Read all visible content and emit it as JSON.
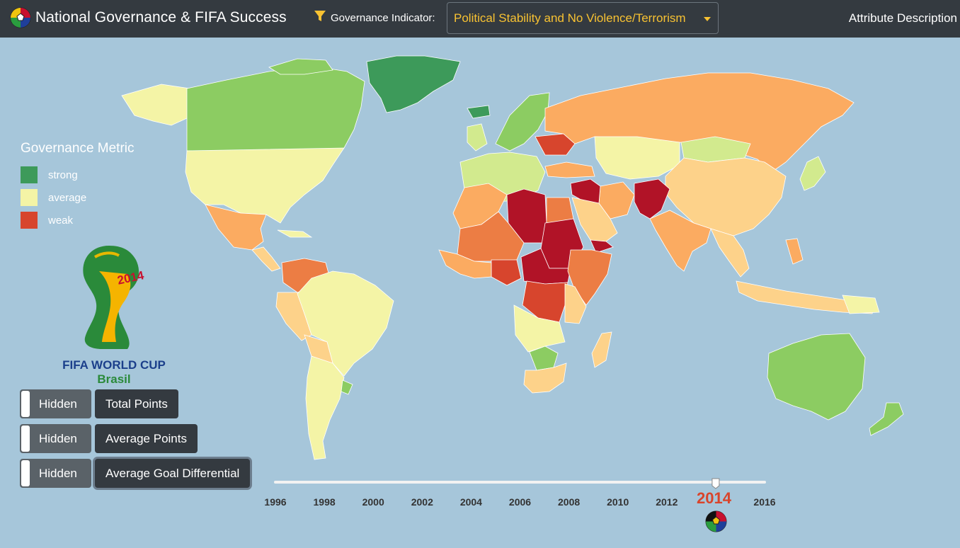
{
  "app": {
    "title": "National Governance & FIFA Success",
    "logo_icon": "soccer-ball-flags-icon"
  },
  "header": {
    "filter_icon": "filter-funnel-icon",
    "indicator_label": "Governance Indicator:",
    "indicator_selected": "Political Stability and No Violence/Terrorism",
    "attribute_description": "Attribute Description"
  },
  "legend": {
    "title": "Governance Metric",
    "items": [
      {
        "label": "strong",
        "color": "#3d9a5a"
      },
      {
        "label": "average",
        "color": "#f4f4a6"
      },
      {
        "label": "weak",
        "color": "#d7452d"
      }
    ]
  },
  "logo": {
    "line1": "FIFA WORLD CUP",
    "line2": "Brasil",
    "year": "2014"
  },
  "toggles": [
    {
      "state": "Hidden",
      "metric": "Total Points",
      "active": false
    },
    {
      "state": "Hidden",
      "metric": "Average Points",
      "active": false
    },
    {
      "state": "Hidden",
      "metric": "Average Goal Differential",
      "active": true
    }
  ],
  "timeline": {
    "ticks": [
      "1996",
      "1998",
      "2000",
      "2002",
      "2004",
      "2006",
      "2008",
      "2010",
      "2012",
      "2014",
      "2016"
    ],
    "selected_year": "2014",
    "start_year": 1996,
    "end_year": 2016
  },
  "colors": {
    "ocean": "#a6c6da",
    "strong": "#3d9a5a",
    "good": "#8ccc62",
    "fair": "#d2ea8e",
    "average": "#f4f4a6",
    "moderate": "#fdd28a",
    "poor": "#fbab61",
    "weak": "#ec7d44",
    "bad": "#d7452d",
    "worst": "#b11327",
    "accent": "#f8c232",
    "year_highlight": "#d9442b"
  }
}
